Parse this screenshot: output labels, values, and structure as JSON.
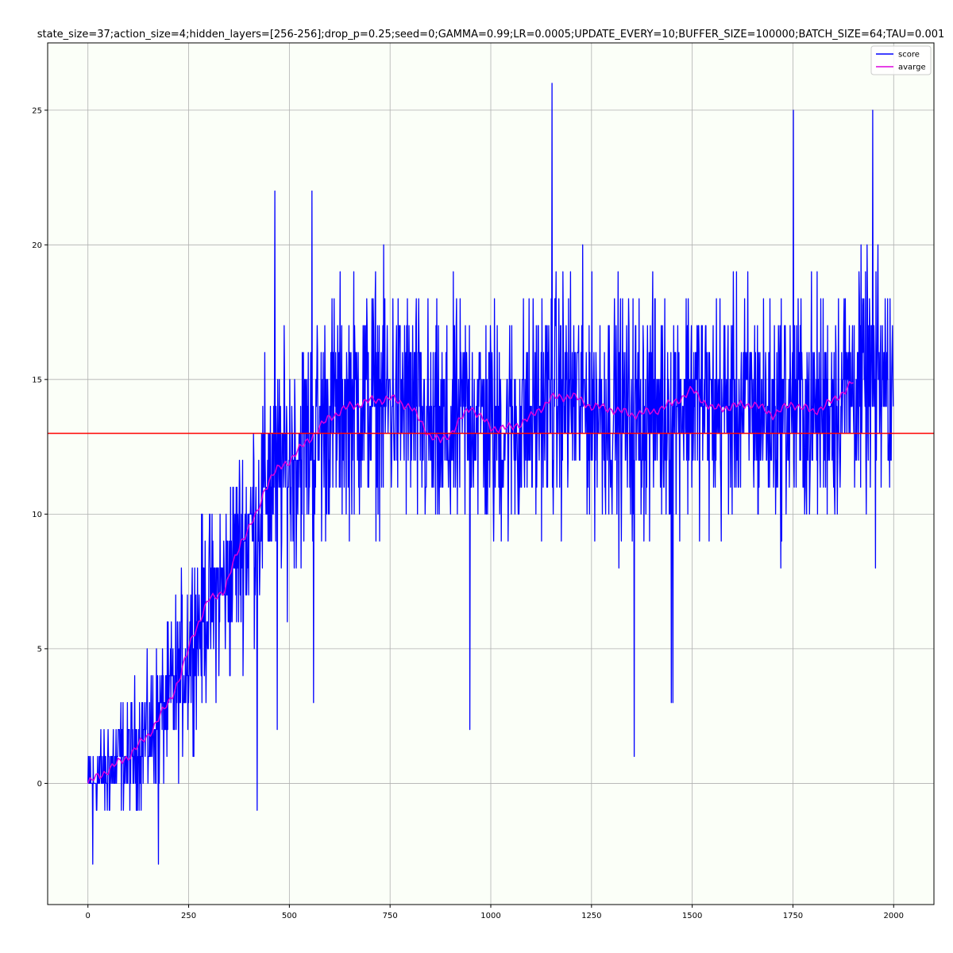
{
  "chart_data": {
    "type": "line",
    "title": "state_size=37;action_size=4;hidden_layers=[256-256];drop_p=0.25;seed=0;GAMMA=0.99;LR=0.0005;UPDATE_EVERY=10;BUFFER_SIZE=100000;BATCH_SIZE=64;TAU=0.001",
    "xlabel": "",
    "ylabel": "",
    "xlim": [
      -100,
      2100
    ],
    "ylim": [
      -4.5,
      27.5
    ],
    "x_ticks": [
      0,
      250,
      500,
      750,
      1000,
      1250,
      1500,
      1750,
      2000
    ],
    "y_ticks": [
      0,
      5,
      10,
      15,
      20,
      25
    ],
    "grid": true,
    "legend_position": "top-right",
    "background_color": "#fbfff8",
    "series": [
      {
        "name": "score",
        "color": "#0000ff",
        "episodes": 2000,
        "noise_amplitude": [
          [
            0,
            1.5
          ],
          [
            250,
            3
          ],
          [
            500,
            4
          ],
          [
            750,
            4
          ],
          [
            1000,
            4
          ],
          [
            1250,
            4
          ],
          [
            1500,
            4
          ],
          [
            1750,
            4
          ],
          [
            2000,
            4
          ]
        ],
        "notable_points": [
          [
            12,
            -3
          ],
          [
            175,
            -3
          ],
          [
            420,
            -1
          ],
          [
            464,
            22
          ],
          [
            556,
            22
          ],
          [
            470,
            2
          ],
          [
            560,
            3
          ],
          [
            948,
            2
          ],
          [
            1152,
            26
          ],
          [
            1356,
            1
          ],
          [
            1448,
            3
          ],
          [
            1452,
            3
          ],
          [
            1751,
            25
          ],
          [
            1948,
            25
          ],
          [
            1955,
            8
          ],
          [
            1990,
            11
          ]
        ]
      },
      {
        "name": "avarge",
        "color": "#dd00dd",
        "x": [
          0,
          50,
          100,
          150,
          200,
          230,
          260,
          300,
          340,
          380,
          420,
          440,
          460,
          500,
          550,
          600,
          650,
          700,
          750,
          800,
          850,
          875,
          900,
          950,
          1000,
          1050,
          1100,
          1150,
          1200,
          1250,
          1300,
          1350,
          1400,
          1450,
          1500,
          1550,
          1600,
          1650,
          1700,
          1750,
          1800,
          1850,
          1900
        ],
        "y": [
          0,
          0.5,
          1.0,
          1.8,
          3.0,
          4.0,
          5.5,
          6.8,
          7.2,
          9.0,
          10.0,
          11.0,
          11.5,
          12.0,
          12.8,
          13.6,
          14.0,
          14.2,
          14.3,
          14.0,
          12.9,
          12.7,
          13.0,
          14.0,
          13.2,
          13.2,
          13.6,
          14.3,
          14.4,
          14.0,
          13.9,
          13.7,
          13.8,
          14.1,
          14.6,
          13.9,
          14.0,
          14.1,
          13.7,
          14.1,
          13.8,
          14.2,
          14.9
        ]
      },
      {
        "name": "",
        "color": "#ff0000",
        "type": "hline",
        "y": 13
      }
    ]
  }
}
